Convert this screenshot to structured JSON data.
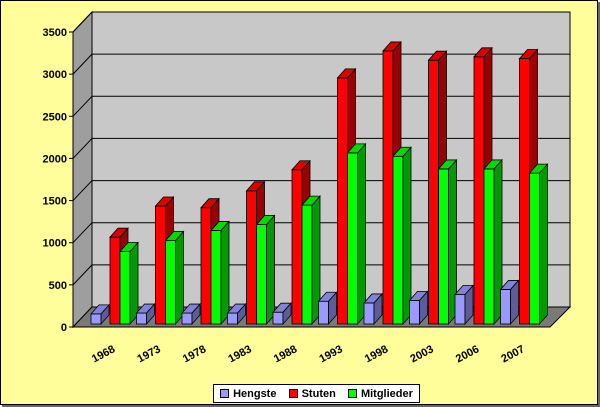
{
  "chart_data": {
    "type": "bar",
    "categories": [
      "1968",
      "1973",
      "1978",
      "1983",
      "1988",
      "1993",
      "1998",
      "2003",
      "2006",
      "2007"
    ],
    "series": [
      {
        "name": "Hengste",
        "color": "#9999ff",
        "values": [
          120,
          130,
          130,
          130,
          140,
          270,
          250,
          280,
          350,
          410
        ]
      },
      {
        "name": "Stuten",
        "color": "#ff0000",
        "values": [
          1030,
          1400,
          1380,
          1580,
          1830,
          2920,
          3240,
          3130,
          3170,
          3150
        ]
      },
      {
        "name": "Mitglieder",
        "color": "#00ff00",
        "values": [
          860,
          990,
          1110,
          1180,
          1410,
          2030,
          1990,
          1840,
          1840,
          1790
        ]
      }
    ],
    "ylim": [
      0,
      3500
    ],
    "yticks": [
      "0",
      "500",
      "1000",
      "1500",
      "2000",
      "2500",
      "3000",
      "3500"
    ],
    "grid": true,
    "legend_position": "bottom",
    "style": "3d-clustered-column"
  }
}
